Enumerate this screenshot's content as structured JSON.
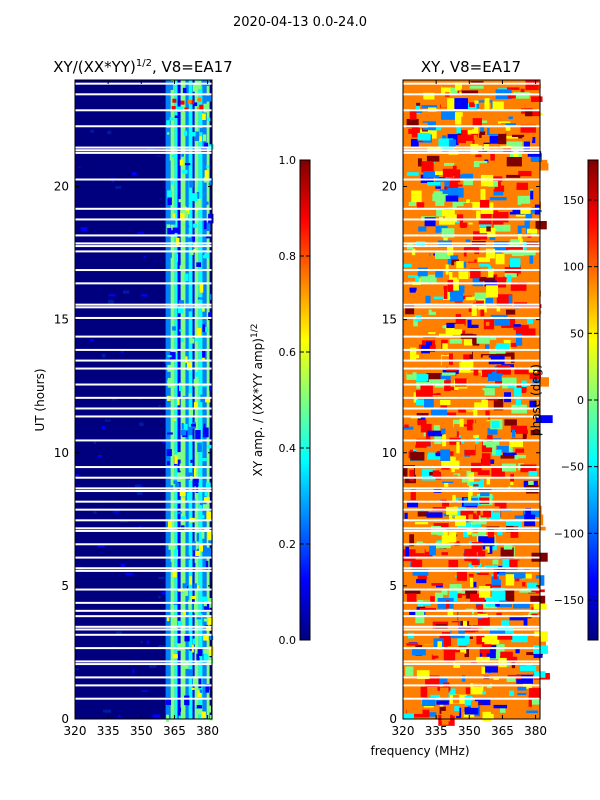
{
  "figure_title": "2020-04-13 0.0-24.0",
  "colors": {
    "jet": [
      "#00007f",
      "#0000ff",
      "#007fff",
      "#00ffff",
      "#7fff7f",
      "#ffff00",
      "#ff7f00",
      "#ff0000",
      "#7f0000"
    ],
    "gap": "#ffffff"
  },
  "chart_data": [
    {
      "type": "heatmap",
      "title_main": "XY/(XX*YY)",
      "title_exp": "1/2",
      "title_suffix": ", V8=EA17",
      "ylabel": "UT (hours)",
      "xlabel": "",
      "xlim": [
        320,
        382
      ],
      "ylim": [
        0,
        24
      ],
      "xticks": [
        320,
        335,
        350,
        365,
        380
      ],
      "yticks": [
        0,
        5,
        10,
        15,
        20
      ],
      "rfi_band_mhz": [
        361,
        382
      ],
      "value_range": [
        0.0,
        1.0
      ],
      "colorbar": {
        "label_main": "XY amp. / (XX*YY amp)",
        "label_exp": "1/2",
        "ticks": [
          "0.0",
          "0.2",
          "0.4",
          "0.6",
          "0.8",
          "1.0"
        ]
      }
    },
    {
      "type": "heatmap",
      "title": "XY, V8=EA17",
      "xlabel": "frequency (MHz)",
      "ylabel": "",
      "xlim": [
        320,
        382
      ],
      "ylim": [
        0,
        24
      ],
      "xticks": [
        320,
        335,
        350,
        365,
        380
      ],
      "yticks": [
        0,
        5,
        10,
        15,
        20
      ],
      "value_range": [
        -180,
        180
      ],
      "colorbar": {
        "label": "phase (deg)",
        "ticks": [
          "150",
          "100",
          "50",
          "0",
          "−50",
          "−100",
          "−150"
        ]
      }
    }
  ],
  "gap_rows_hours": [
    0.8,
    1.3,
    1.6,
    2.1,
    2.2,
    2.7,
    3.2,
    3.4,
    3.5,
    3.9,
    4.1,
    4.4,
    4.9,
    5.6,
    5.7,
    6.1,
    6.6,
    7.1,
    7.2,
    7.5,
    7.9,
    8.2,
    8.6,
    8.7,
    9.1,
    9.5,
    10.5,
    11.4,
    11.7,
    12.1,
    12.6,
    13.2,
    13.5,
    13.9,
    14.4,
    15.1,
    15.5,
    15.6,
    16.4,
    16.9,
    17.6,
    17.8,
    17.9,
    18.2,
    18.8,
    19.2,
    20.3,
    21.3,
    21.4,
    21.5,
    22.3,
    22.9,
    23.5,
    23.9
  ]
}
